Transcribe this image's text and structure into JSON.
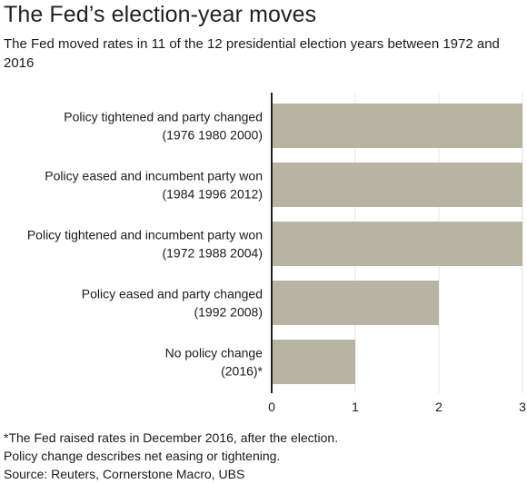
{
  "header": {
    "title": "The Fed’s election-year moves",
    "subtitle": "The Fed moved rates in 11 of the 12 presidential election years between 1972 and 2016"
  },
  "chart_data": {
    "type": "bar",
    "orientation": "horizontal",
    "categories": [
      [
        "Policy tightened and party changed",
        "(1976 1980 2000)"
      ],
      [
        "Policy eased and incumbent party won",
        "(1984 1996 2012)"
      ],
      [
        "Policy tightened and incumbent party won",
        "(1972 1988 2004)"
      ],
      [
        "Policy eased and party changed",
        "(1992 2008)"
      ],
      [
        "No policy change",
        "(2016)*"
      ]
    ],
    "values": [
      3,
      3,
      3,
      2,
      1
    ],
    "xlim": [
      0,
      3
    ],
    "xticks": [
      "0",
      "1",
      "2",
      "3"
    ],
    "grid": true,
    "colors": {
      "bar": "#b9b3a3",
      "axis": "#2b2117",
      "grid": "#e6e6e6"
    }
  },
  "footnotes": {
    "note1": "*The Fed raised rates in December 2016, after the election.",
    "note2": "Policy change describes net easing or tightening.",
    "source": "Source: Reuters, Cornerstone Macro, UBS"
  }
}
